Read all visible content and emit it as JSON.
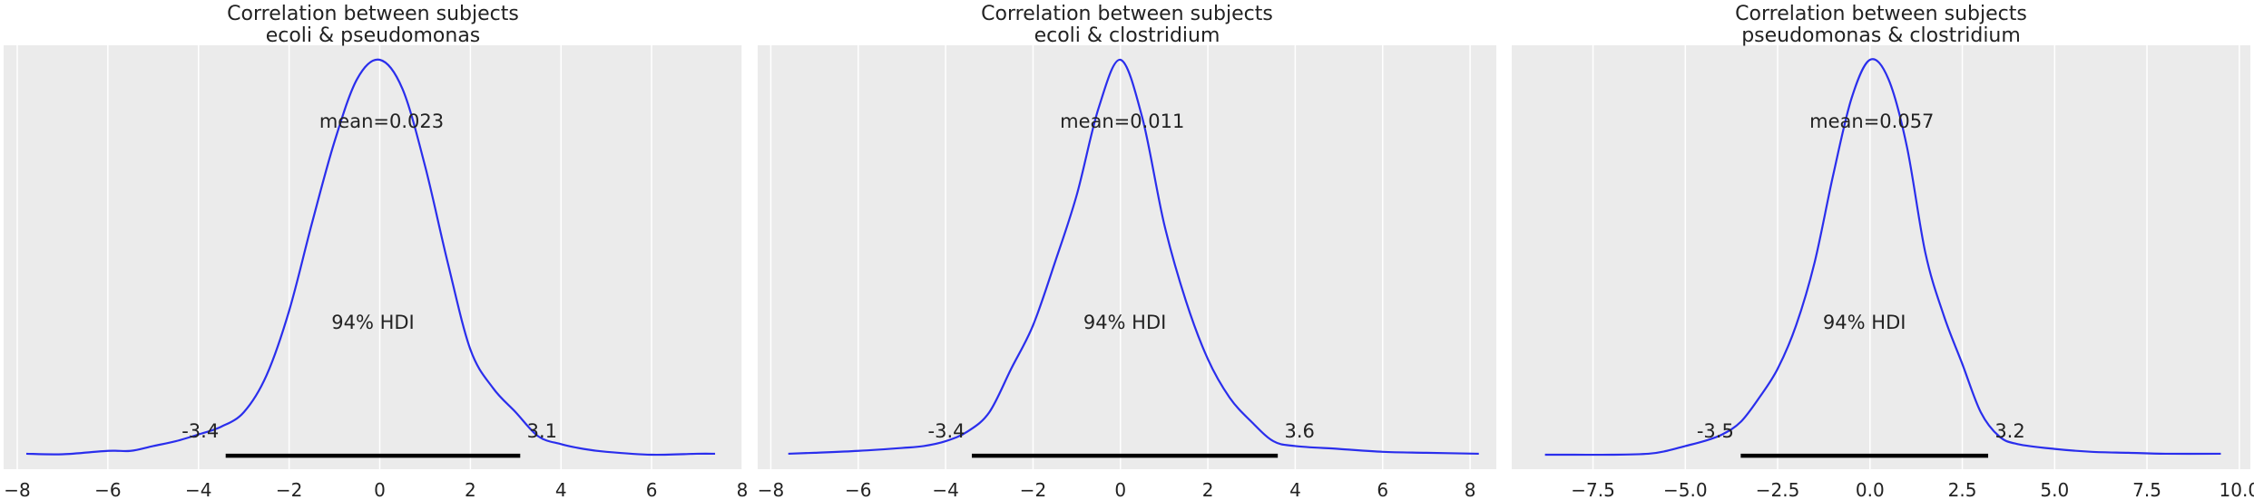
{
  "colors": {
    "background": "#ebebeb",
    "grid": "#ffffff",
    "kde_line": "#2a2eec",
    "hdi_bar": "#000000",
    "text": "#222222"
  },
  "chart_data": [
    {
      "type": "line",
      "title_line1": "Correlation between subjects",
      "title_line2": "ecoli & pseudomonas",
      "xlabel": "",
      "ylabel": "",
      "grid": true,
      "xlim": [
        -8.3,
        8.0
      ],
      "ylim": [
        -0.014,
        0.425
      ],
      "xticks": [
        -8,
        -6,
        -4,
        -2,
        0,
        2,
        4,
        6,
        8
      ],
      "xtick_labels": [
        "−8",
        "−6",
        "−4",
        "−2",
        "0",
        "2",
        "4",
        "6",
        "8"
      ],
      "mean_text": "mean=0.023",
      "hdi_text": "94% HDI",
      "hdi": [
        -3.4,
        3.1
      ],
      "hdi_labels": [
        "-3.4",
        "3.1"
      ],
      "series": [
        {
          "x": [
            -7.8,
            -7.0,
            -6.0,
            -5.5,
            -5.0,
            -4.5,
            -4.0,
            -3.5,
            -3.0,
            -2.5,
            -2.0,
            -1.5,
            -1.0,
            -0.5,
            0.0,
            0.5,
            1.0,
            1.5,
            2.0,
            2.5,
            3.0,
            3.5,
            4.0,
            4.5,
            5.0,
            6.0,
            7.0,
            7.4
          ],
          "y": [
            0.002,
            0.0015,
            0.005,
            0.005,
            0.01,
            0.015,
            0.022,
            0.03,
            0.045,
            0.083,
            0.15,
            0.24,
            0.325,
            0.39,
            0.41,
            0.38,
            0.3,
            0.2,
            0.11,
            0.07,
            0.045,
            0.02,
            0.012,
            0.007,
            0.004,
            0.001,
            0.002,
            0.002
          ]
        }
      ]
    },
    {
      "type": "line",
      "title_line1": "Correlation between subjects",
      "title_line2": "ecoli & clostridium",
      "xlabel": "",
      "ylabel": "",
      "grid": true,
      "xlim": [
        -8.3,
        8.6
      ],
      "ylim": [
        -0.014,
        0.425
      ],
      "xticks": [
        -8,
        -6,
        -4,
        -2,
        0,
        2,
        4,
        6,
        8
      ],
      "xtick_labels": [
        "−8",
        "−6",
        "−4",
        "−2",
        "0",
        "2",
        "4",
        "6",
        "8"
      ],
      "mean_text": "mean=0.011",
      "hdi_text": "94% HDI",
      "hdi": [
        -3.4,
        3.6
      ],
      "hdi_labels": [
        "-3.4",
        "3.6"
      ],
      "series": [
        {
          "x": [
            -7.6,
            -7.0,
            -6.0,
            -5.0,
            -4.5,
            -4.0,
            -3.5,
            -3.0,
            -2.5,
            -2.0,
            -1.5,
            -1.0,
            -0.5,
            0.0,
            0.5,
            1.0,
            1.5,
            2.0,
            2.5,
            3.0,
            3.5,
            4.0,
            5.0,
            6.0,
            7.0,
            8.2
          ],
          "y": [
            0.002,
            0.003,
            0.005,
            0.008,
            0.01,
            0.015,
            0.025,
            0.045,
            0.09,
            0.135,
            0.2,
            0.27,
            0.36,
            0.41,
            0.35,
            0.24,
            0.16,
            0.1,
            0.06,
            0.035,
            0.015,
            0.01,
            0.007,
            0.004,
            0.003,
            0.002
          ]
        }
      ]
    },
    {
      "type": "line",
      "title_line1": "Correlation between subjects",
      "title_line2": "pseudomonas & clostridium",
      "xlabel": "",
      "ylabel": "",
      "grid": true,
      "xlim": [
        -9.7,
        10.3
      ],
      "ylim": [
        -0.014,
        0.425
      ],
      "xticks": [
        -7.5,
        -5.0,
        -2.5,
        0.0,
        2.5,
        5.0,
        7.5,
        10.0
      ],
      "xtick_labels": [
        "−7.5",
        "−5.0",
        "−2.5",
        "0.0",
        "2.5",
        "5.0",
        "7.5",
        "10.0"
      ],
      "mean_text": "mean=0.057",
      "hdi_text": "94% HDI",
      "hdi": [
        -3.5,
        3.2
      ],
      "hdi_labels": [
        "-3.5",
        "3.2"
      ],
      "series": [
        {
          "x": [
            -8.8,
            -8.0,
            -7.0,
            -6.0,
            -5.5,
            -5.0,
            -4.5,
            -4.0,
            -3.5,
            -3.0,
            -2.5,
            -2.0,
            -1.5,
            -1.0,
            -0.5,
            0.0,
            0.5,
            1.0,
            1.5,
            2.0,
            2.5,
            3.0,
            3.5,
            4.0,
            5.0,
            6.0,
            7.0,
            8.0,
            9.5
          ],
          "y": [
            0.001,
            0.001,
            0.001,
            0.002,
            0.005,
            0.01,
            0.015,
            0.022,
            0.035,
            0.06,
            0.09,
            0.135,
            0.2,
            0.29,
            0.37,
            0.41,
            0.39,
            0.32,
            0.21,
            0.145,
            0.095,
            0.045,
            0.02,
            0.012,
            0.007,
            0.004,
            0.003,
            0.002,
            0.002
          ]
        }
      ]
    }
  ]
}
